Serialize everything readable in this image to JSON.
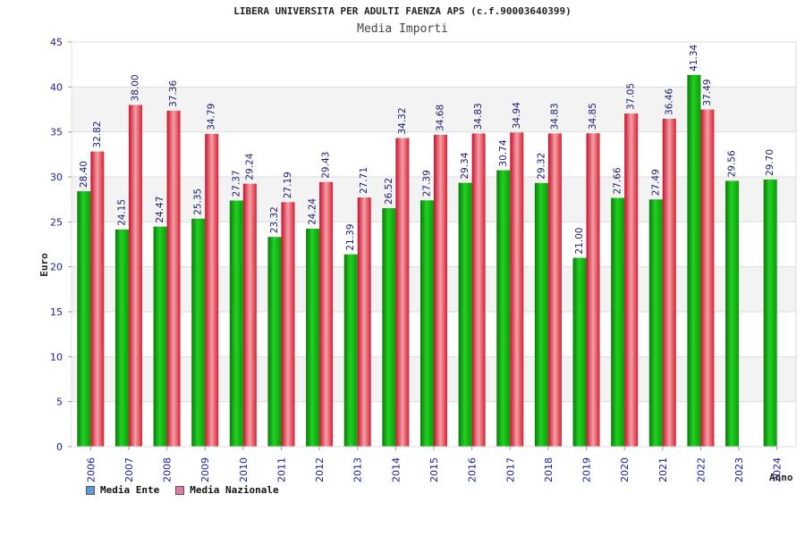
{
  "chart_data": {
    "type": "bar",
    "title": "LIBERA UNIVERSITA PER ADULTI FAENZA APS (c.f.90003640399)",
    "subtitle": "Media Importi",
    "xlabel": "Anno",
    "ylabel": "Euro",
    "ylim": [
      0,
      45
    ],
    "yticks": [
      0,
      5,
      10,
      15,
      20,
      25,
      30,
      35,
      40,
      45
    ],
    "grid": true,
    "legend_position": "bottom-left",
    "categories": [
      "2006",
      "2007",
      "2008",
      "2009",
      "2010",
      "2011",
      "2012",
      "2013",
      "2014",
      "2015",
      "2016",
      "2017",
      "2018",
      "2019",
      "2020",
      "2021",
      "2022",
      "2023",
      "2024"
    ],
    "series": [
      {
        "name": "Media Ente",
        "color": "#14b814",
        "legend_color": "#5b9bd5",
        "values": [
          28.4,
          24.15,
          24.47,
          25.35,
          27.37,
          23.32,
          24.24,
          21.39,
          26.52,
          27.39,
          29.34,
          30.74,
          29.32,
          21.0,
          27.66,
          27.49,
          41.34,
          29.56,
          29.7
        ],
        "labels": [
          "28.40",
          "24.15",
          "24.47",
          "25.35",
          "27.37",
          "23.32",
          "24.24",
          "21.39",
          "26.52",
          "27.39",
          "29.34",
          "30.74",
          "29.32",
          "21.00",
          "27.66",
          "27.49",
          "41.34",
          "29.56",
          "29.70"
        ]
      },
      {
        "name": "Media Nazionale",
        "color": "#e0303c",
        "legend_color": "#e07aa8",
        "values": [
          32.82,
          38.0,
          37.36,
          34.79,
          29.24,
          27.19,
          29.43,
          27.71,
          34.32,
          34.68,
          34.83,
          34.94,
          34.83,
          34.85,
          37.05,
          36.46,
          37.49,
          null,
          null
        ],
        "labels": [
          "32.82",
          "38.00",
          "37.36",
          "34.79",
          "29.24",
          "27.19",
          "29.43",
          "27.71",
          "34.32",
          "34.68",
          "34.83",
          "34.94",
          "34.83",
          "34.85",
          "37.05",
          "36.46",
          "37.49",
          null,
          null
        ]
      }
    ]
  }
}
